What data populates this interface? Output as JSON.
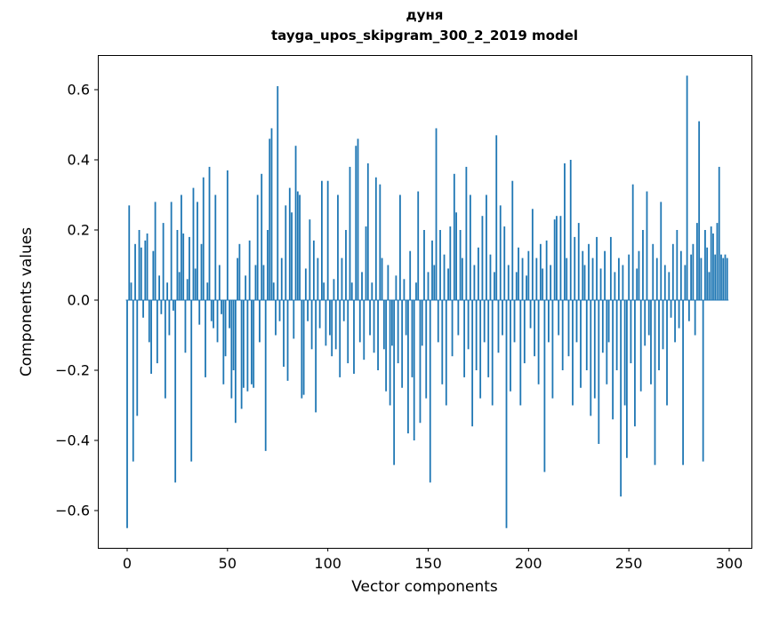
{
  "title": {
    "line1": "дуня",
    "line2": "tayga_upos_skipgram_300_2_2019 model"
  },
  "chart_data": {
    "type": "bar",
    "title": "дуня\ntayga_upos_skipgram_300_2_2019 model",
    "xlabel": "Vector components",
    "ylabel": "Components values",
    "xlim": [
      -15,
      311
    ],
    "ylim": [
      -0.71,
      0.7
    ],
    "grid": false,
    "legend": "none",
    "bar_color": "#1f77b4",
    "xticks": [
      0,
      50,
      100,
      150,
      200,
      250,
      300
    ],
    "yticks": [
      -0.6,
      -0.4,
      -0.2,
      0.0,
      0.2,
      0.4,
      0.6
    ],
    "ytick_labels": [
      "−0.6",
      "−0.4",
      "−0.2",
      "0.0",
      "0.2",
      "0.4",
      "0.6"
    ],
    "x_start": 0,
    "x_step": 1,
    "values": [
      -0.65,
      0.27,
      0.05,
      -0.46,
      0.16,
      -0.33,
      0.2,
      0.15,
      -0.05,
      0.17,
      0.19,
      -0.12,
      -0.21,
      0.14,
      0.28,
      -0.18,
      0.07,
      -0.04,
      0.22,
      -0.28,
      0.05,
      -0.1,
      0.28,
      -0.03,
      -0.52,
      0.2,
      0.08,
      0.3,
      0.19,
      -0.15,
      0.06,
      0.18,
      -0.46,
      0.32,
      0.09,
      0.28,
      -0.07,
      0.16,
      0.35,
      -0.22,
      0.05,
      0.38,
      -0.06,
      -0.08,
      0.3,
      -0.12,
      0.1,
      -0.04,
      -0.24,
      -0.16,
      0.37,
      -0.08,
      -0.28,
      -0.2,
      -0.35,
      0.12,
      0.16,
      -0.31,
      -0.25,
      0.07,
      -0.26,
      0.17,
      -0.24,
      -0.25,
      0.1,
      0.3,
      -0.12,
      0.36,
      0.1,
      -0.43,
      0.2,
      0.46,
      0.49,
      0.05,
      -0.1,
      0.61,
      -0.06,
      0.12,
      -0.19,
      0.27,
      -0.23,
      0.32,
      0.25,
      -0.11,
      0.44,
      0.31,
      0.3,
      -0.28,
      -0.27,
      0.09,
      -0.06,
      0.23,
      -0.14,
      0.17,
      -0.32,
      0.12,
      -0.08,
      0.34,
      0.05,
      -0.13,
      0.34,
      -0.1,
      -0.16,
      0.06,
      -0.14,
      0.3,
      -0.22,
      0.12,
      -0.06,
      0.2,
      -0.18,
      0.38,
      0.05,
      -0.21,
      0.44,
      0.46,
      -0.12,
      0.08,
      -0.17,
      0.21,
      0.39,
      -0.1,
      0.05,
      -0.15,
      0.35,
      -0.2,
      0.33,
      0.12,
      -0.14,
      -0.26,
      0.1,
      -0.3,
      -0.13,
      -0.47,
      0.07,
      -0.18,
      0.3,
      -0.25,
      0.06,
      -0.1,
      -0.38,
      0.14,
      -0.22,
      -0.4,
      0.05,
      0.31,
      -0.35,
      -0.13,
      0.2,
      -0.28,
      0.08,
      -0.52,
      0.17,
      0.1,
      0.49,
      -0.12,
      0.2,
      -0.24,
      0.13,
      -0.3,
      0.09,
      0.21,
      -0.16,
      0.36,
      0.25,
      -0.1,
      0.2,
      0.12,
      -0.22,
      0.38,
      -0.14,
      0.3,
      -0.36,
      0.1,
      -0.2,
      0.15,
      -0.28,
      0.24,
      -0.12,
      0.3,
      -0.22,
      0.13,
      -0.3,
      0.08,
      0.47,
      -0.15,
      0.27,
      -0.1,
      0.21,
      -0.65,
      0.1,
      -0.26,
      0.34,
      -0.12,
      0.08,
      0.15,
      -0.3,
      0.12,
      -0.18,
      0.07,
      0.14,
      -0.08,
      0.26,
      -0.16,
      0.12,
      -0.24,
      0.16,
      0.09,
      -0.49,
      0.17,
      -0.12,
      0.1,
      -0.28,
      0.23,
      0.24,
      -0.1,
      0.24,
      -0.2,
      0.39,
      0.12,
      -0.16,
      0.4,
      -0.3,
      0.18,
      -0.12,
      0.22,
      -0.25,
      0.14,
      0.1,
      -0.2,
      0.16,
      -0.33,
      0.12,
      -0.28,
      0.18,
      -0.41,
      0.09,
      -0.15,
      0.14,
      -0.24,
      -0.12,
      0.18,
      -0.34,
      0.08,
      -0.2,
      0.12,
      -0.56,
      0.1,
      -0.3,
      -0.45,
      0.13,
      -0.18,
      0.33,
      -0.36,
      0.09,
      0.14,
      -0.26,
      0.2,
      -0.13,
      0.31,
      -0.1,
      -0.24,
      0.16,
      -0.47,
      0.12,
      -0.2,
      0.28,
      -0.14,
      0.1,
      -0.3,
      0.08,
      -0.05,
      0.16,
      -0.12,
      0.2,
      -0.08,
      0.14,
      -0.47,
      0.1,
      0.64,
      -0.06,
      0.13,
      0.16,
      -0.1,
      0.22,
      0.51,
      0.12,
      -0.46,
      0.2,
      0.15,
      0.08,
      0.21,
      0.19,
      0.13,
      0.22,
      0.38,
      0.13,
      0.12,
      0.13,
      0.12
    ]
  }
}
